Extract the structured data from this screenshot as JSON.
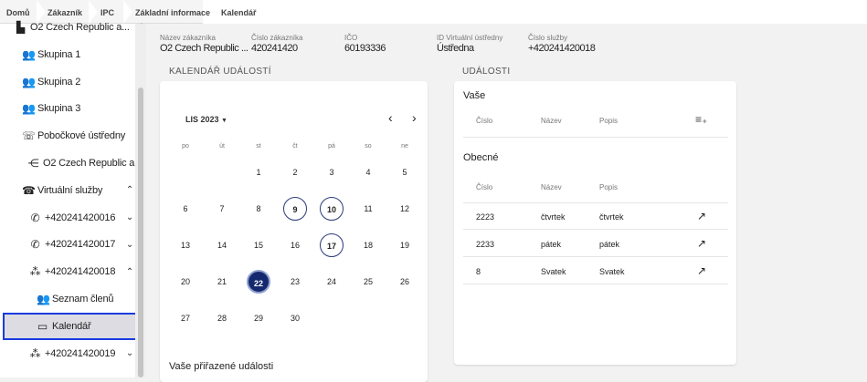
{
  "breadcrumb": [
    "Domů",
    "Zákazník",
    "IPC",
    "Základní informace",
    "Kalendář"
  ],
  "sidebar": {
    "items": [
      {
        "label": "O2 Czech Republic a...",
        "icon": "building-icon",
        "chevron": "up"
      },
      {
        "label": "Skupina 1",
        "icon": "group-icon"
      },
      {
        "label": "Skupina 2",
        "icon": "group-icon"
      },
      {
        "label": "Skupina 3",
        "icon": "group-icon"
      },
      {
        "label": "Pobočkové ústředny",
        "icon": "phone-forward-icon",
        "chevron": "up"
      },
      {
        "label": "O2 Czech Republic a...",
        "icon": "pbx-icon"
      },
      {
        "label": "Virtuální služby",
        "icon": "ringing-phone-icon",
        "chevron": "up"
      },
      {
        "label": "+420241420016",
        "icon": "phone-icon",
        "chevron": "down"
      },
      {
        "label": "+420241420017",
        "icon": "phone-icon",
        "chevron": "down"
      },
      {
        "label": "+420241420018",
        "icon": "team-icon",
        "chevron": "up"
      },
      {
        "label": "Seznam členů",
        "icon": "group-icon"
      },
      {
        "label": "Kalendář",
        "icon": "calendar-icon",
        "selected": true
      },
      {
        "label": "+420241420019",
        "icon": "team-icon",
        "chevron": "down"
      }
    ]
  },
  "info": [
    {
      "label": "Název zákazníka",
      "value": "O2 Czech Republic ..."
    },
    {
      "label": "Číslo zákazníka",
      "value": "420241420"
    },
    {
      "label": "IČO",
      "value": "60193336"
    },
    {
      "label": "ID Virtuální ústředny",
      "value": "Ústředna"
    },
    {
      "label": "Číslo služby",
      "value": "+420241420018"
    }
  ],
  "calendar": {
    "section_title": "KALENDÁŘ UDÁLOSTÍ",
    "month": "LIS 2023",
    "weekdays": [
      "po",
      "út",
      "st",
      "čt",
      "pá",
      "so",
      "ne"
    ],
    "first_weekday_index": 2,
    "days_in_month": 30,
    "outlined_days": [
      9,
      10,
      17
    ],
    "selected_day": 22,
    "assigned_title": "Vaše přiřazené události"
  },
  "events": {
    "section_title": "UDÁLOSTI",
    "yours_title": "Vaše",
    "general_title": "Obecné",
    "columns": [
      "Číslo",
      "Název",
      "Popis"
    ],
    "rows": [
      [
        "2223",
        "čtvrtek",
        "čtvrtek"
      ],
      [
        "2233",
        "pátek",
        "pátek"
      ],
      [
        "8",
        "Svatek",
        "Svatek"
      ]
    ]
  },
  "colors": {
    "selection_border": "#1a3be0",
    "selected_day": "#14286e"
  }
}
